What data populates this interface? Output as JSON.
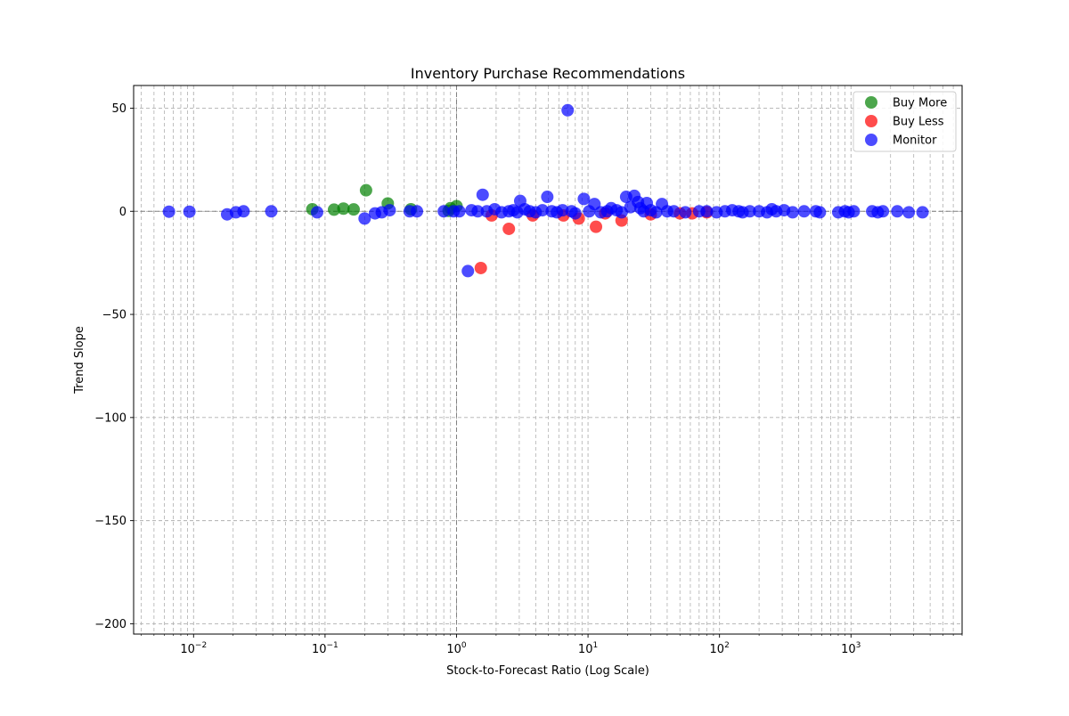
{
  "chart_data": {
    "type": "scatter",
    "title": "Inventory Purchase Recommendations",
    "xlabel": "Stock-to-Forecast Ratio (Log Scale)",
    "ylabel": "Trend Slope",
    "x_scale": "log",
    "xlim": [
      0.0035,
      7000
    ],
    "ylim": [
      -205,
      61
    ],
    "x_ticks": [
      {
        "value": 0.01,
        "base": "10",
        "exp": "−2"
      },
      {
        "value": 0.1,
        "base": "10",
        "exp": "−1"
      },
      {
        "value": 1,
        "base": "10",
        "exp": "0"
      },
      {
        "value": 10,
        "base": "10",
        "exp": "1"
      },
      {
        "value": 100,
        "base": "10",
        "exp": "2"
      },
      {
        "value": 1000,
        "base": "10",
        "exp": "3"
      }
    ],
    "y_ticks": [
      {
        "value": 50,
        "label": "50"
      },
      {
        "value": 0,
        "label": "0"
      },
      {
        "value": -50,
        "label": "−50"
      },
      {
        "value": -100,
        "label": "−100"
      },
      {
        "value": -150,
        "label": "−150"
      },
      {
        "value": -200,
        "label": "−200"
      }
    ],
    "grid": true,
    "reference_lines": {
      "x": 1,
      "y": 0
    },
    "legend_position": "top-right",
    "series": [
      {
        "name": "Buy More",
        "color": "#008000",
        "points": [
          [
            0.08,
            1.0
          ],
          [
            0.117,
            0.8
          ],
          [
            0.138,
            1.3
          ],
          [
            0.165,
            0.9
          ],
          [
            0.205,
            10.2
          ],
          [
            0.3,
            3.8
          ],
          [
            0.45,
            1.0
          ],
          [
            0.9,
            1.5
          ],
          [
            1.0,
            2.5
          ],
          [
            0.87,
            0.2
          ]
        ]
      },
      {
        "name": "Buy Less",
        "color": "#ff0000",
        "points": [
          [
            1.53,
            -27.5
          ],
          [
            1.85,
            -2.0
          ],
          [
            2.5,
            -8.5
          ],
          [
            3.8,
            -2.0
          ],
          [
            6.5,
            -2.0
          ],
          [
            8.5,
            -3.5
          ],
          [
            11.5,
            -7.5
          ],
          [
            13.5,
            -1.0
          ],
          [
            18.0,
            -4.5
          ],
          [
            30.0,
            -1.5
          ],
          [
            50.0,
            -1.0
          ],
          [
            62.0,
            -1.0
          ],
          [
            80.0,
            -0.5
          ]
        ]
      },
      {
        "name": "Monitor",
        "color": "#0000ff",
        "points": [
          [
            0.0065,
            -0.2
          ],
          [
            0.0093,
            -0.2
          ],
          [
            0.018,
            -1.5
          ],
          [
            0.021,
            -0.5
          ],
          [
            0.024,
            0.0
          ],
          [
            0.039,
            0.0
          ],
          [
            0.087,
            -0.5
          ],
          [
            0.2,
            -3.5
          ],
          [
            0.24,
            -1.0
          ],
          [
            0.27,
            -0.5
          ],
          [
            0.31,
            0.5
          ],
          [
            0.44,
            0.0
          ],
          [
            0.5,
            0.0
          ],
          [
            0.8,
            0.0
          ],
          [
            0.95,
            0.0
          ],
          [
            1.05,
            0.0
          ],
          [
            1.22,
            -29.0
          ],
          [
            1.3,
            0.5
          ],
          [
            1.45,
            0.0
          ],
          [
            1.58,
            8.0
          ],
          [
            1.7,
            0.0
          ],
          [
            1.95,
            1.0
          ],
          [
            2.2,
            -0.5
          ],
          [
            2.5,
            0.0
          ],
          [
            2.7,
            0.5
          ],
          [
            2.9,
            -0.5
          ],
          [
            3.05,
            5.0
          ],
          [
            3.3,
            1.0
          ],
          [
            3.6,
            0.0
          ],
          [
            4.0,
            -0.5
          ],
          [
            4.5,
            0.5
          ],
          [
            4.9,
            7.0
          ],
          [
            5.3,
            0.0
          ],
          [
            5.8,
            -0.5
          ],
          [
            6.4,
            0.5
          ],
          [
            7.0,
            49.0
          ],
          [
            7.5,
            0.0
          ],
          [
            8.0,
            -1.0
          ],
          [
            9.3,
            6.0
          ],
          [
            10.2,
            0.0
          ],
          [
            11.2,
            3.5
          ],
          [
            12.5,
            -0.5
          ],
          [
            14.0,
            0.0
          ],
          [
            15.0,
            1.5
          ],
          [
            16.5,
            0.5
          ],
          [
            18.0,
            -0.5
          ],
          [
            19.5,
            7.0
          ],
          [
            21.0,
            2.0
          ],
          [
            22.5,
            7.5
          ],
          [
            24.0,
            4.5
          ],
          [
            25.0,
            1.5
          ],
          [
            26.5,
            0.0
          ],
          [
            28.0,
            4.0
          ],
          [
            30.0,
            0.5
          ],
          [
            33.0,
            -0.5
          ],
          [
            36.5,
            3.5
          ],
          [
            40.0,
            0.0
          ],
          [
            45.0,
            0.0
          ],
          [
            55.0,
            -0.5
          ],
          [
            70.0,
            0.0
          ],
          [
            80.0,
            0.0
          ],
          [
            95.0,
            -0.5
          ],
          [
            110.0,
            0.0
          ],
          [
            125.0,
            0.5
          ],
          [
            140.0,
            0.0
          ],
          [
            150.0,
            -0.5
          ],
          [
            170.0,
            0.0
          ],
          [
            200.0,
            0.0
          ],
          [
            230.0,
            -0.5
          ],
          [
            250.0,
            1.0
          ],
          [
            270.0,
            0.0
          ],
          [
            310.0,
            0.5
          ],
          [
            360.0,
            -0.5
          ],
          [
            440.0,
            0.0
          ],
          [
            540.0,
            0.0
          ],
          [
            580.0,
            -0.5
          ],
          [
            800.0,
            -0.5
          ],
          [
            900.0,
            0.0
          ],
          [
            960.0,
            -0.5
          ],
          [
            1050.0,
            0.0
          ],
          [
            1450.0,
            0.0
          ],
          [
            1600.0,
            -0.5
          ],
          [
            1750.0,
            0.0
          ],
          [
            2250.0,
            0.0
          ],
          [
            2750.0,
            -0.5
          ],
          [
            3500.0,
            -0.5
          ]
        ]
      }
    ]
  }
}
